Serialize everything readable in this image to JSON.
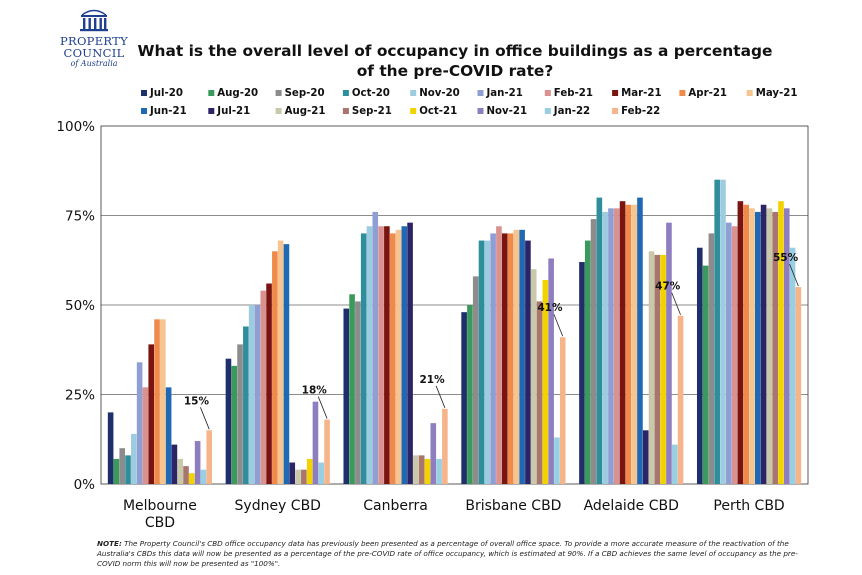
{
  "logo": {
    "line1": "PROPERTY",
    "line2": "COUNCIL",
    "line3": "of Australia"
  },
  "note": {
    "label": "NOTE:",
    "text": "The Property Council's CBD office occupancy data has previously been presented as a percentage of overall office space. To provide a more accurate measure of the reactivation of the Australia's CBDs this data will now be presented as a percentage of the pre-COVID rate of office occupancy, which is estimated at 90%. If a CBD achieves the same level of occupancy as the pre-COVID norm this will now be presented as \"100%\"."
  },
  "chart_data": {
    "type": "bar",
    "title": "What is the overall level of occupancy in office buildings as a percentage of the pre-COVID rate?",
    "ylim": [
      0,
      100
    ],
    "yticks": [
      "0%",
      "25%",
      "50%",
      "75%",
      "100%"
    ],
    "grid": true,
    "legend_position": "top",
    "categories": [
      "Melbourne CBD",
      "Sydney CBD",
      "Canberra",
      "Brisbane CBD",
      "Adelaide CBD",
      "Perth CBD"
    ],
    "series": [
      {
        "name": "Jul-20",
        "color": "#1f2f6b",
        "values": [
          20,
          35,
          49,
          48,
          62,
          66
        ]
      },
      {
        "name": "Aug-20",
        "color": "#3a9a5c",
        "values": [
          7,
          33,
          53,
          50,
          68,
          61
        ]
      },
      {
        "name": "Sep-20",
        "color": "#8c8c8c",
        "values": [
          10,
          39,
          51,
          58,
          74,
          70
        ]
      },
      {
        "name": "Oct-20",
        "color": "#2f8e9c",
        "values": [
          8,
          44,
          70,
          68,
          80,
          85
        ]
      },
      {
        "name": "Nov-20",
        "color": "#9dcbe0",
        "values": [
          14,
          50,
          72,
          68,
          76,
          85
        ]
      },
      {
        "name": "Jan-21",
        "color": "#8f9fd4",
        "values": [
          34,
          50,
          76,
          70,
          77,
          73
        ]
      },
      {
        "name": "Feb-21",
        "color": "#d9928f",
        "values": [
          27,
          54,
          72,
          72,
          77,
          72
        ]
      },
      {
        "name": "Mar-21",
        "color": "#7a1410",
        "values": [
          39,
          56,
          72,
          70,
          79,
          79
        ]
      },
      {
        "name": "Apr-21",
        "color": "#f08a4b",
        "values": [
          46,
          65,
          70,
          70,
          78,
          78
        ]
      },
      {
        "name": "May-21",
        "color": "#f6c48f",
        "values": [
          46,
          68,
          71,
          71,
          78,
          77
        ]
      },
      {
        "name": "Jun-21",
        "color": "#1f68b3",
        "values": [
          27,
          67,
          72,
          71,
          80,
          76
        ]
      },
      {
        "name": "Jul-21",
        "color": "#2b2466",
        "values": [
          11,
          6,
          73,
          68,
          15,
          78
        ]
      },
      {
        "name": "Aug-21",
        "color": "#c9c8a8",
        "values": [
          7,
          4,
          8,
          60,
          65,
          77
        ]
      },
      {
        "name": "Sep-21",
        "color": "#a8766f",
        "values": [
          5,
          4,
          8,
          51,
          64,
          76
        ]
      },
      {
        "name": "Oct-21",
        "color": "#f2d300",
        "values": [
          3,
          7,
          7,
          57,
          64,
          79
        ]
      },
      {
        "name": "Nov-21",
        "color": "#8e7ec0",
        "values": [
          12,
          23,
          17,
          63,
          73,
          77
        ]
      },
      {
        "name": "Jan-22",
        "color": "#98cfe3",
        "values": [
          4,
          6,
          7,
          13,
          11,
          66
        ]
      },
      {
        "name": "Feb-22",
        "color": "#f6b48a",
        "values": [
          15,
          18,
          21,
          41,
          47,
          55
        ]
      }
    ],
    "annotations": [
      "15%",
      "18%",
      "21%",
      "41%",
      "47%",
      "55%"
    ]
  }
}
